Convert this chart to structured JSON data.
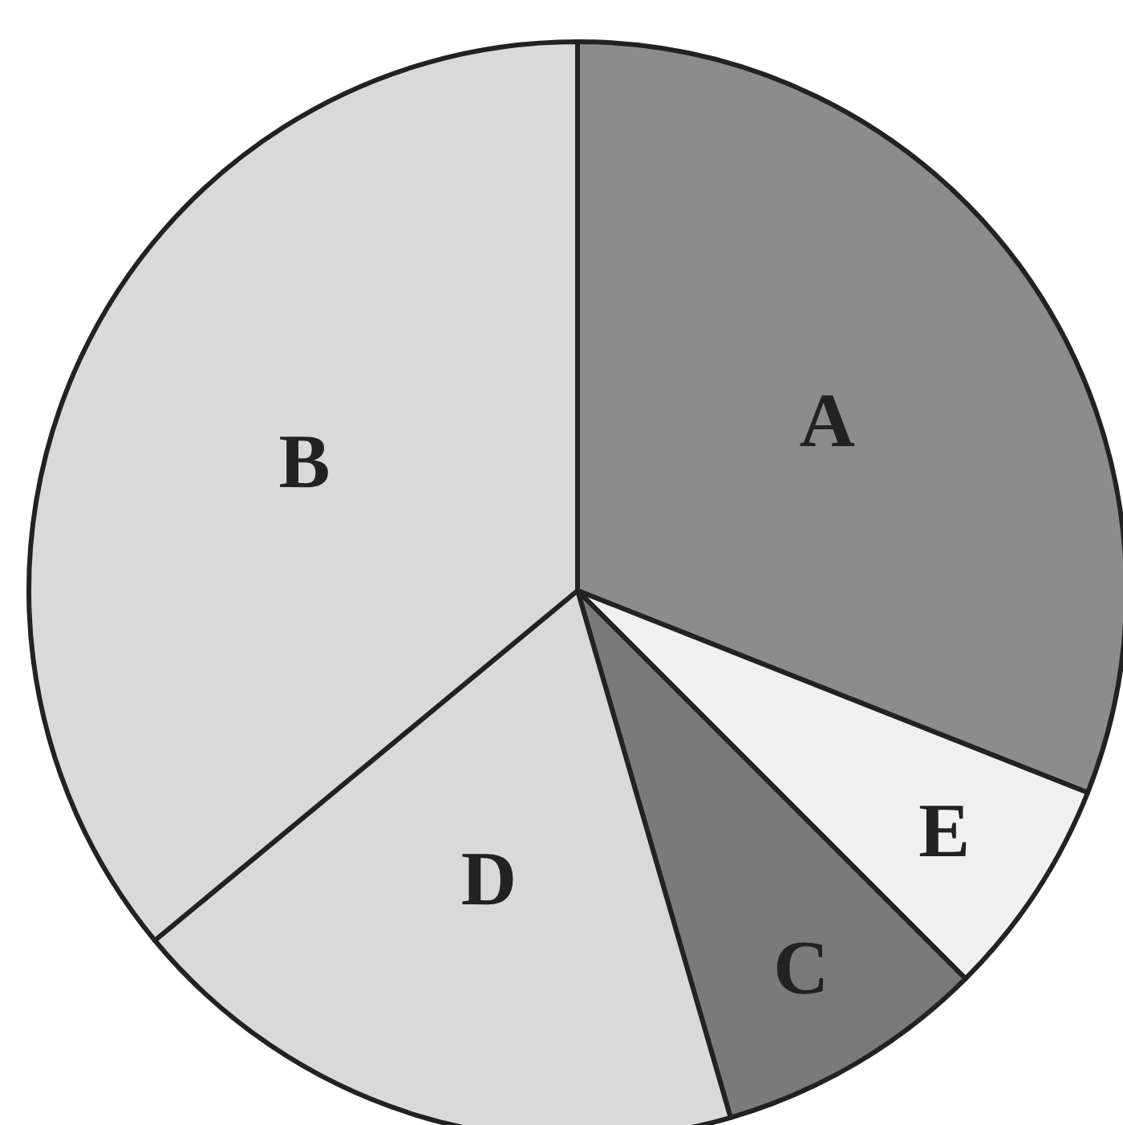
{
  "chart_data": {
    "type": "pie",
    "categories": [
      "A",
      "E",
      "C",
      "D",
      "B"
    ],
    "values": [
      31,
      6.5,
      8,
      18.5,
      36
    ],
    "colors": [
      "#8c8c8c",
      "#f0f0f0",
      "#7a7a7a",
      "#d9d9d9",
      "#d9d9d9"
    ]
  }
}
